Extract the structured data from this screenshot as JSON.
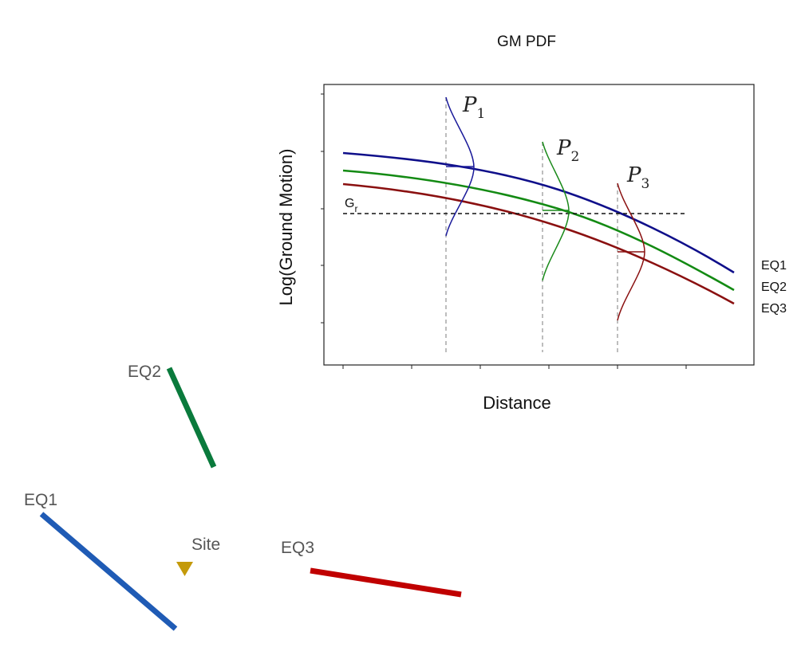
{
  "figure": {
    "title": "GM PDF",
    "ylabel": "Log(Ground Motion)",
    "xlabel": "Distance",
    "threshold_label": "G",
    "threshold_subscript": "r",
    "pdf_labels": [
      {
        "letter": "P",
        "sub": "1"
      },
      {
        "letter": "P",
        "sub": "2"
      },
      {
        "letter": "P",
        "sub": "3"
      }
    ],
    "curve_labels": [
      "EQ1",
      "EQ2",
      "EQ3"
    ]
  },
  "map": {
    "faults": [
      {
        "label": "EQ2",
        "color": "#0a7a3c"
      },
      {
        "label": "EQ1",
        "color": "#1f5bb5"
      },
      {
        "label": "EQ3",
        "color": "#c00000"
      }
    ],
    "site_label": "Site",
    "site_color": "#c49a0a"
  },
  "colors": {
    "eq1_curve": "#0f0f8a",
    "eq2_curve": "#138a13",
    "eq3_curve": "#8a1010",
    "guide": "#999999"
  }
}
